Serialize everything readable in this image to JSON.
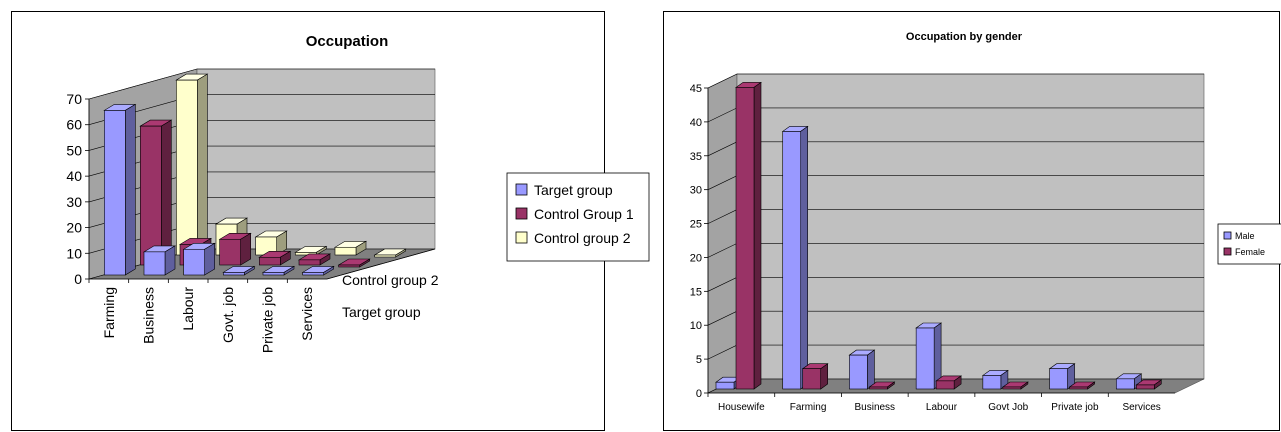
{
  "colors": {
    "wall": "#c0c0c0",
    "gridline": "#000000",
    "target_group": "#9999ff",
    "control_group_1": "#993366",
    "control_group_2": "#ffffcc"
  },
  "chart_data": [
    {
      "type": "bar",
      "style": "3d-clustered",
      "title": "Occupation",
      "categories": [
        "Farming",
        "Business",
        "Labour",
        "Govt. job",
        "Private job",
        "Services"
      ],
      "depth_labels": [
        "Control group 2",
        "Target group"
      ],
      "series": [
        {
          "name": "Target group",
          "color": "#9999ff",
          "values": [
            64,
            9,
            10,
            1,
            1,
            1
          ]
        },
        {
          "name": "Control Group 1",
          "color": "#993366",
          "values": [
            54,
            8,
            10,
            3,
            2,
            0
          ]
        },
        {
          "name": "Control group 2",
          "color": "#ffffcc",
          "values": [
            68,
            12,
            7,
            1,
            3,
            0
          ]
        }
      ],
      "yticks": [
        0,
        10,
        20,
        30,
        40,
        50,
        60,
        70
      ],
      "ylim": [
        0,
        70
      ],
      "grid": true,
      "legend": "right"
    },
    {
      "type": "bar",
      "style": "3d-column",
      "title": "Occupation by gender",
      "categories": [
        "Housewife",
        "Farming",
        "Business",
        "Labour",
        "Govt Job",
        "Private job",
        "Services"
      ],
      "series": [
        {
          "name": "Male",
          "color": "#9999ff",
          "values": [
            1,
            38,
            5,
            9,
            2,
            3,
            1.5
          ]
        },
        {
          "name": "Female",
          "color": "#993366",
          "values": [
            44.5,
            3,
            0,
            1.2,
            0.3,
            0,
            0.6
          ]
        }
      ],
      "yticks": [
        0,
        5,
        10,
        15,
        20,
        25,
        30,
        35,
        40,
        45
      ],
      "ylim": [
        0,
        45
      ],
      "grid": true,
      "legend": "right"
    }
  ]
}
